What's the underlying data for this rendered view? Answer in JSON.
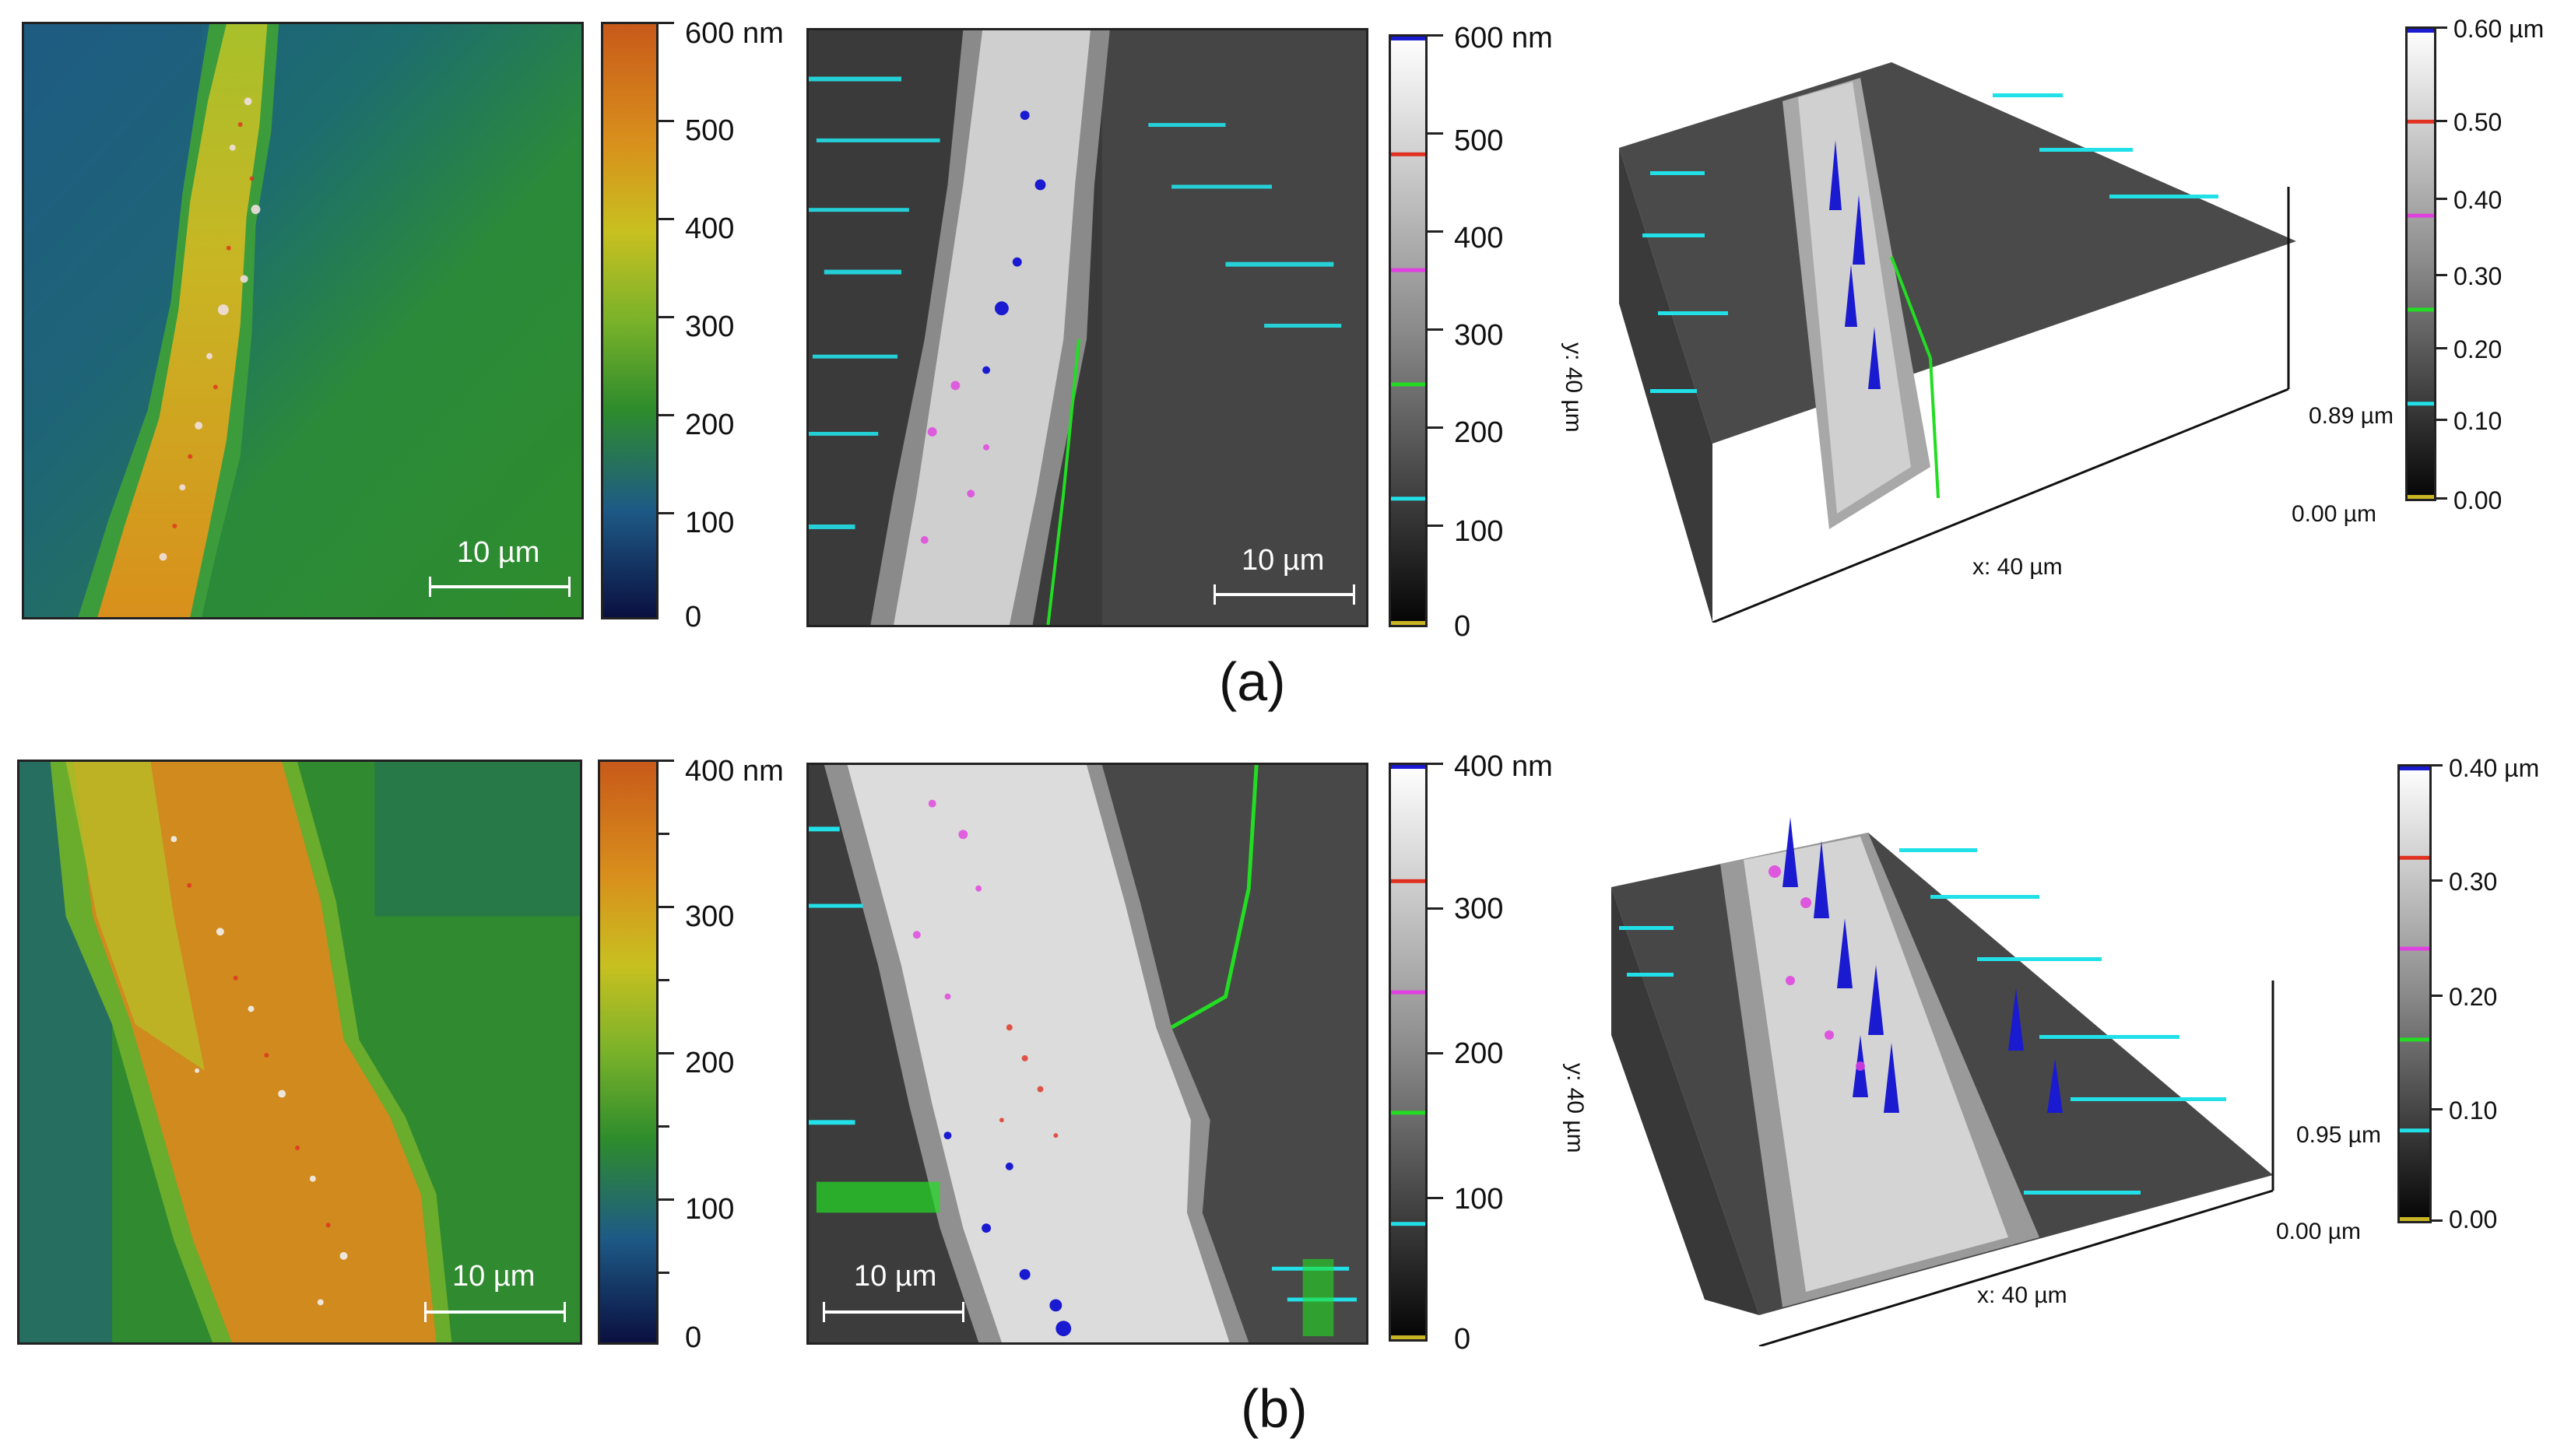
{
  "figure": {
    "panel_a": {
      "label": "(a)",
      "color_map": {
        "scale_labels": [
          "600 nm",
          "500",
          "400",
          "300",
          "200",
          "100",
          "0"
        ],
        "scale_bar": "10 µm"
      },
      "threshold_map": {
        "scale_labels": [
          "600 nm",
          "500",
          "400",
          "300",
          "200",
          "100",
          "0"
        ],
        "scale_bar": "10 µm"
      },
      "surface_3d": {
        "scale_labels": [
          "0.60 µm",
          "0.50",
          "0.40",
          "0.30",
          "0.20",
          "0.10",
          "0.00"
        ],
        "x_axis": "x: 40 µm",
        "y_axis": "y: 40 µm",
        "z_max": "0.89 µm",
        "z_min": "0.00 µm"
      }
    },
    "panel_b": {
      "label": "(b)",
      "color_map": {
        "scale_labels": [
          "400 nm",
          "300",
          "200",
          "100",
          "0"
        ],
        "scale_bar": "10 µm"
      },
      "threshold_map": {
        "scale_labels": [
          "400 nm",
          "300",
          "200",
          "100",
          "0"
        ],
        "scale_bar": "10 µm"
      },
      "surface_3d": {
        "scale_labels": [
          "0.40 µm",
          "0.30",
          "0.20",
          "0.10",
          "0.00"
        ],
        "x_axis": "x: 40 µm",
        "y_axis": "y: 40 µm",
        "z_max": "0.95 µm",
        "z_min": "0.00 µm"
      }
    },
    "colors": {
      "background_blue": "#1a4f8a",
      "background_green": "#2f8a30",
      "stripe_yellow": "#c8c020",
      "stripe_orange": "#d8781e",
      "gray_dark": "#3a3a3a",
      "gray_light": "#d8d8d8",
      "cyan_threshold": "#22e0e8",
      "magenta_threshold": "#e040e0",
      "green_threshold": "#22dd22",
      "blue_threshold": "#1a1ad0",
      "red_threshold": "#e03020"
    }
  }
}
